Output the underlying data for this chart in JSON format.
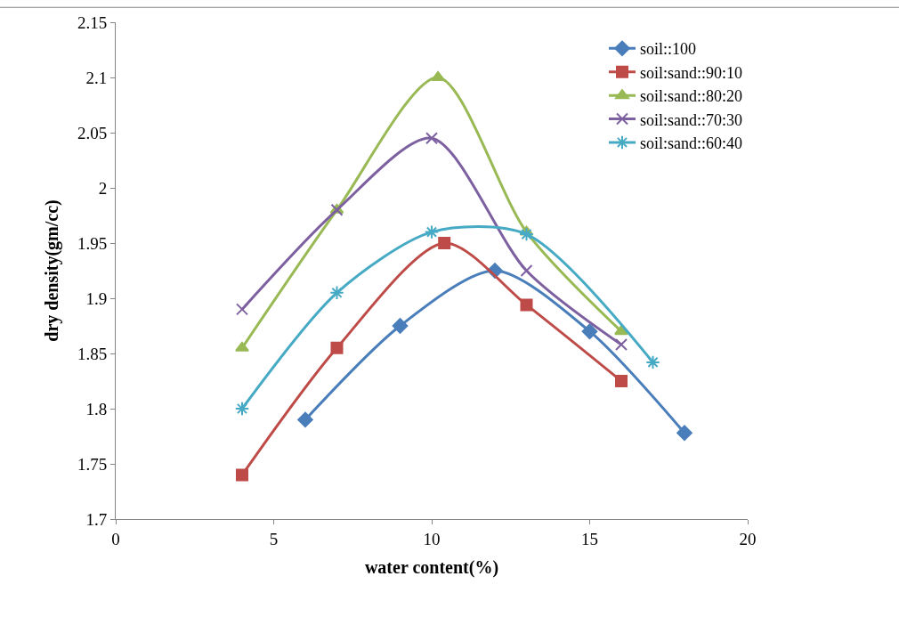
{
  "chart_data": {
    "type": "line",
    "xlabel": "water content(%)",
    "ylabel": "dry density(gm/cc)",
    "xlim": [
      0,
      20
    ],
    "xticks": [
      0,
      5,
      10,
      15,
      20
    ],
    "ylim": [
      1.7,
      2.15
    ],
    "yticks": [
      1.7,
      1.75,
      1.8,
      1.85,
      1.9,
      1.95,
      2,
      2.05,
      2.1,
      2.15
    ],
    "legend": "top right",
    "series": [
      {
        "name": "soil::100",
        "color": "#4a7ebb",
        "marker": "diamond",
        "x": [
          6,
          9,
          12,
          15,
          18
        ],
        "values": [
          1.79,
          1.875,
          1.925,
          1.87,
          1.778
        ]
      },
      {
        "name": "soil:sand::90:10",
        "color": "#be4b48",
        "marker": "square",
        "x": [
          4,
          7,
          10.4,
          13,
          16
        ],
        "values": [
          1.74,
          1.855,
          1.95,
          1.894,
          1.825
        ]
      },
      {
        "name": "soil:sand::80:20",
        "color": "#98b954",
        "marker": "triangle",
        "x": [
          4,
          7,
          10.2,
          13,
          16
        ],
        "values": [
          1.855,
          1.98,
          2.1,
          1.96,
          1.87
        ]
      },
      {
        "name": "soil:sand::70:30",
        "color": "#7d60a0",
        "marker": "cross",
        "x": [
          4,
          7,
          10,
          13,
          16
        ],
        "values": [
          1.89,
          1.98,
          2.045,
          1.925,
          1.858
        ]
      },
      {
        "name": "soil:sand::60:40",
        "color": "#46aac5",
        "marker": "cross",
        "x": [
          4,
          7,
          10,
          13,
          17
        ],
        "values": [
          1.8,
          1.905,
          1.96,
          1.958,
          1.842
        ]
      }
    ]
  }
}
